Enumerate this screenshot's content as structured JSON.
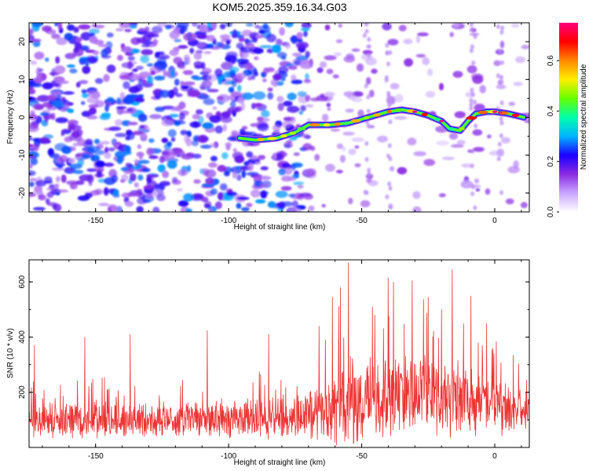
{
  "title": "KOM5.2025.359.16.34.G03",
  "chart_data": [
    {
      "type": "heatmap",
      "name": "spectrogram",
      "xlabel": "Height of straight line (km)",
      "ylabel": "Frequency (Hz)",
      "xlim": [
        -175,
        13
      ],
      "ylim": [
        -25,
        25
      ],
      "xticks": [
        -150,
        -100,
        -50,
        0
      ],
      "yticks": [
        -20,
        -10,
        0,
        10,
        20
      ],
      "colorbar": {
        "label": "Normalized spectral amplitude",
        "range": [
          0.0,
          0.75
        ],
        "ticks": [
          "0.0",
          "0.2",
          "0.4",
          "0.6"
        ],
        "colors": [
          "#ffffff",
          "#c9a6ff",
          "#8a2be2",
          "#1a00ff",
          "#00b4ff",
          "#00ffaa",
          "#66ff00",
          "#ffee00",
          "#ff8800",
          "#ff0000",
          "#ff007f"
        ]
      },
      "ridge": {
        "description": "signal ridge frequency (Hz) vs height (km)",
        "x": [
          -96,
          -90,
          -82,
          -75,
          -70,
          -62,
          -55,
          -50,
          -45,
          -40,
          -35,
          -30,
          -25,
          -20,
          -17,
          -13,
          -10,
          -7,
          -3,
          0,
          5,
          11
        ],
        "y": [
          -5.5,
          -6,
          -5.5,
          -4,
          -2,
          -2,
          -1.5,
          -0.5,
          0.5,
          1.5,
          2,
          1.5,
          0.5,
          -1,
          -3,
          -3.5,
          -1,
          1,
          1.5,
          1.5,
          1,
          0
        ],
        "peak_amplitude": 0.75
      },
      "noise_region_x": [
        -175,
        -70
      ]
    },
    {
      "type": "line",
      "name": "snr",
      "xlabel": "Height of straight line (km)",
      "ylabel": "SNR (10 * v/v)",
      "xlim": [
        -175,
        13
      ],
      "ylim": [
        0,
        680
      ],
      "xticks": [
        -150,
        -100,
        -50,
        0
      ],
      "yticks": [
        200,
        400,
        600
      ],
      "color": "#ee3333",
      "envelope": {
        "x": [
          -175,
          -150,
          -120,
          -100,
          -80,
          -70,
          -62,
          -58,
          -55,
          -45,
          -38,
          -30,
          -25,
          -20,
          -12,
          -5,
          0,
          5,
          13
        ],
        "base": [
          90,
          90,
          95,
          100,
          100,
          110,
          130,
          140,
          140,
          160,
          180,
          190,
          190,
          180,
          170,
          150,
          140,
          130,
          120
        ],
        "spread": [
          100,
          110,
          110,
          115,
          125,
          160,
          230,
          260,
          270,
          260,
          260,
          250,
          250,
          240,
          220,
          200,
          170,
          150,
          130
        ]
      },
      "peaks": [
        {
          "x": -173,
          "y": 370
        },
        {
          "x": -154,
          "y": 400
        },
        {
          "x": -137,
          "y": 410
        },
        {
          "x": -108,
          "y": 425
        },
        {
          "x": -85,
          "y": 410
        },
        {
          "x": -66,
          "y": 440
        },
        {
          "x": -61,
          "y": 545
        },
        {
          "x": -58,
          "y": 580
        },
        {
          "x": -55,
          "y": 670
        },
        {
          "x": -46,
          "y": 510
        },
        {
          "x": -40,
          "y": 615
        },
        {
          "x": -38,
          "y": 600
        },
        {
          "x": -31,
          "y": 605
        },
        {
          "x": -25,
          "y": 545
        },
        {
          "x": -20,
          "y": 500
        },
        {
          "x": -16,
          "y": 645
        },
        {
          "x": -9,
          "y": 550
        },
        {
          "x": -3,
          "y": 450
        },
        {
          "x": 7,
          "y": 335
        }
      ]
    }
  ]
}
